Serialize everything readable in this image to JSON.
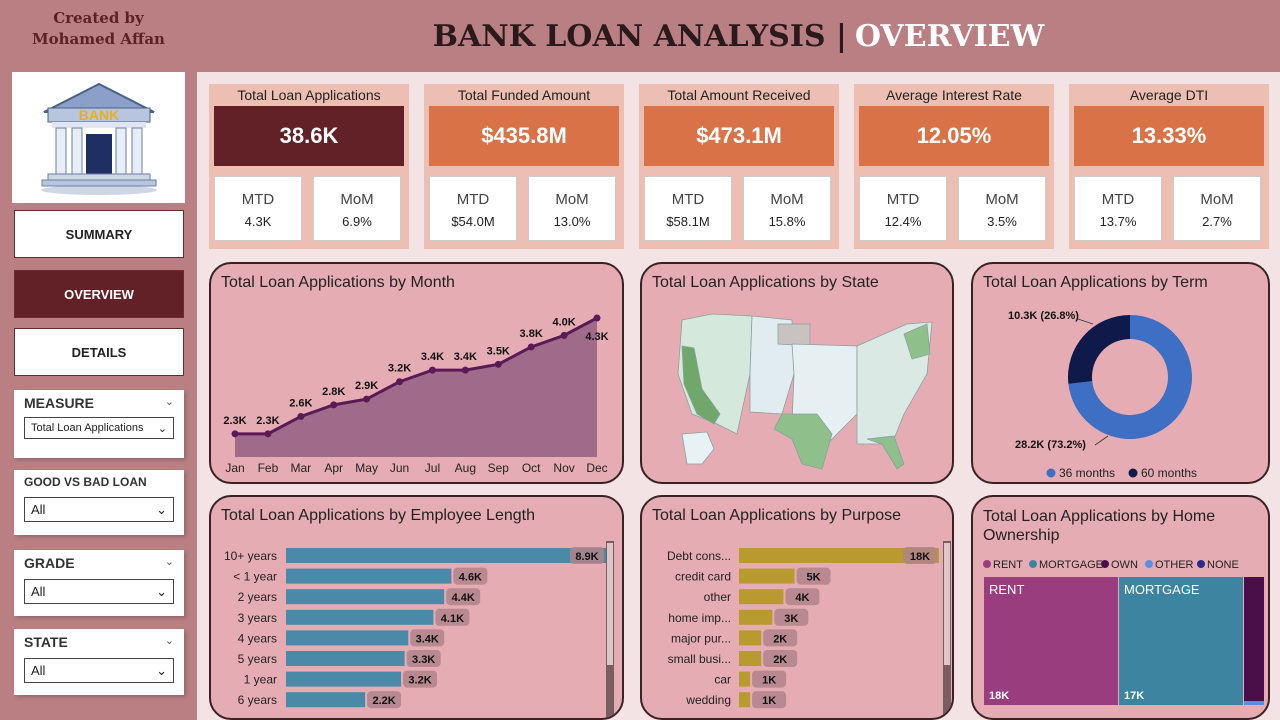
{
  "credit": {
    "line1": "Created by",
    "line2": "Mohamed Affan"
  },
  "logo": {
    "text": "BANK"
  },
  "nav": {
    "summary": "SUMMARY",
    "overview": "OVERVIEW",
    "details": "DETAILS"
  },
  "slicers": {
    "measure": {
      "title": "MEASURE",
      "value": "Total Loan Applications"
    },
    "good_bad": {
      "title": "GOOD VS BAD LOAN",
      "value": "All"
    },
    "grade": {
      "title": "GRADE",
      "value": "All"
    },
    "state": {
      "title": "STATE",
      "value": "All"
    }
  },
  "header": {
    "title": "BANK LOAN ANALYSIS |",
    "highlight": "OVERVIEW"
  },
  "kpis": [
    {
      "label": "Total Loan Applications",
      "value": "38.6K",
      "mtd_label": "MTD",
      "mtd": "4.3K",
      "mom_label": "MoM",
      "mom": "6.9%",
      "color": "#622127"
    },
    {
      "label": "Total Funded Amount",
      "value": "$435.8M",
      "mtd_label": "MTD",
      "mtd": "$54.0M",
      "mom_label": "MoM",
      "mom": "13.0%",
      "color": "#d97246"
    },
    {
      "label": "Total Amount Received",
      "value": "$473.1M",
      "mtd_label": "MTD",
      "mtd": "$58.1M",
      "mom_label": "MoM",
      "mom": "15.8%",
      "color": "#d97246"
    },
    {
      "label": "Average Interest Rate",
      "value": "12.05%",
      "mtd_label": "MTD",
      "mtd": "12.4%",
      "mom_label": "MoM",
      "mom": "3.5%",
      "color": "#d97246"
    },
    {
      "label": "Average DTI",
      "value": "13.33%",
      "mtd_label": "MTD",
      "mtd": "13.7%",
      "mom_label": "MoM",
      "mom": "2.7%",
      "color": "#d97246"
    }
  ],
  "chart_data": [
    {
      "type": "area",
      "title": "Total Loan Applications by Month",
      "categories": [
        "Jan",
        "Feb",
        "Mar",
        "Apr",
        "May",
        "Jun",
        "Jul",
        "Aug",
        "Sep",
        "Oct",
        "Nov",
        "Dec"
      ],
      "values": [
        2.3,
        2.3,
        2.6,
        2.8,
        2.9,
        3.2,
        3.4,
        3.4,
        3.5,
        3.8,
        4.0,
        4.3
      ],
      "labels": [
        "2.3K",
        "2.3K",
        "2.6K",
        "2.8K",
        "2.9K",
        "3.2K",
        "3.4K",
        "3.4K",
        "3.5K",
        "3.8K",
        "4.0K",
        "4.3K"
      ],
      "color": "#5a1a55",
      "fill": "#a06b8b"
    },
    {
      "type": "map",
      "title": "Total Loan Applications by State"
    },
    {
      "type": "pie",
      "title": "Total Loan Applications by Term",
      "series": [
        {
          "name": "36 months",
          "value": 28.2,
          "label": "28.2K (73.2%)",
          "color": "#3d6fc4"
        },
        {
          "name": "60 months",
          "value": 10.3,
          "label": "10.3K (26.8%)",
          "color": "#0f1a4a"
        }
      ]
    },
    {
      "type": "bar",
      "title": "Total Loan Applications by Employee Length",
      "categories": [
        "10+ years",
        "< 1 year",
        "2 years",
        "3 years",
        "4 years",
        "5 years",
        "1 year",
        "6 years"
      ],
      "values": [
        8.9,
        4.6,
        4.4,
        4.1,
        3.4,
        3.3,
        3.2,
        2.2
      ],
      "labels": [
        "8.9K",
        "4.6K",
        "4.4K",
        "4.1K",
        "3.4K",
        "3.3K",
        "3.2K",
        "2.2K"
      ],
      "color": "#4a8aa8",
      "xlim": [
        0,
        8.9
      ]
    },
    {
      "type": "bar",
      "title": "Total Loan Applications by Purpose",
      "categories": [
        "Debt cons...",
        "credit card",
        "other",
        "home imp...",
        "major pur...",
        "small busi...",
        "car",
        "wedding"
      ],
      "values": [
        18,
        5,
        4,
        3,
        2,
        2,
        1,
        1
      ],
      "labels": [
        "18K",
        "5K",
        "4K",
        "3K",
        "2K",
        "2K",
        "1K",
        "1K"
      ],
      "color": "#b89a2e",
      "xlim": [
        0,
        18
      ]
    },
    {
      "type": "treemap",
      "title": "Total Loan Applications by Home Ownership",
      "legend": [
        {
          "name": "RENT",
          "color": "#9a3d7e"
        },
        {
          "name": "MORTGAGE",
          "color": "#3d84a0"
        },
        {
          "name": "OWN",
          "color": "#4a0f4a"
        },
        {
          "name": "OTHER",
          "color": "#5b8ee0"
        },
        {
          "name": "NONE",
          "color": "#2a2a8a"
        }
      ],
      "tiles": [
        {
          "name": "RENT",
          "label": "18K",
          "color": "#9a3d7e"
        },
        {
          "name": "MORTGAGE",
          "label": "17K",
          "color": "#3d84a0"
        },
        {
          "name": "OWN",
          "label": "",
          "color": "#4a0f4a"
        }
      ]
    }
  ]
}
